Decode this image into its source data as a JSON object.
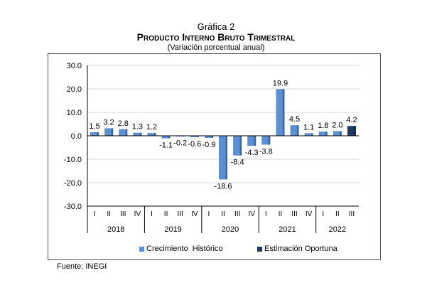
{
  "chart_data": {
    "type": "bar",
    "title_prefix": "Gráfica 2",
    "title": "Producto Interno Bruto Trimestral",
    "subtitle": "(Variación porcentual anual)",
    "ylim": [
      -30,
      30
    ],
    "yticks": [
      30,
      20,
      10,
      0,
      -10,
      -20,
      -30
    ],
    "grid": true,
    "years": [
      {
        "label": "2018",
        "quarters": [
          "I",
          "II",
          "III",
          "IV"
        ]
      },
      {
        "label": "2019",
        "quarters": [
          "I",
          "II",
          "III",
          "IV"
        ]
      },
      {
        "label": "2020",
        "quarters": [
          "I",
          "II",
          "III",
          "IV"
        ]
      },
      {
        "label": "2021",
        "quarters": [
          "I",
          "II",
          "III",
          "IV"
        ]
      },
      {
        "label": "2022",
        "quarters": [
          "I",
          "II",
          "III"
        ]
      }
    ],
    "values": [
      1.5,
      3.2,
      2.8,
      1.3,
      1.2,
      -1.1,
      -0.2,
      -0.6,
      -0.9,
      -18.6,
      -8.4,
      -4.3,
      -3.8,
      19.9,
      4.5,
      1.1,
      1.8,
      2.0,
      4.2
    ],
    "series_type": [
      "hist",
      "hist",
      "hist",
      "hist",
      "hist",
      "hist",
      "hist",
      "hist",
      "hist",
      "hist",
      "hist",
      "hist",
      "hist",
      "hist",
      "hist",
      "hist",
      "hist",
      "hist",
      "est"
    ],
    "legend": [
      {
        "key": "hist",
        "name": "Crecimiento  Histórico",
        "color": "#5b8fd6"
      },
      {
        "key": "est",
        "name": "Estimación Oportuna",
        "color": "#1f3864"
      }
    ],
    "legend_position": "bottom"
  },
  "source": "Fuente: INEGI"
}
